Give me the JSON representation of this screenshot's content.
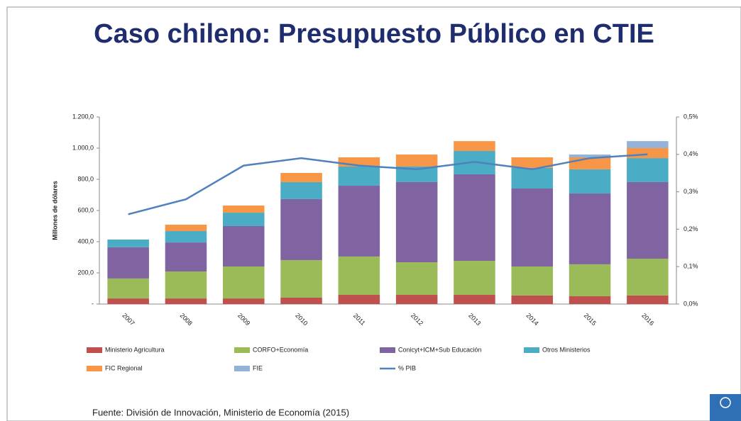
{
  "chart_data": {
    "type": "bar",
    "stacked": true,
    "title": "Caso chileno: Presupuesto Público en CTIE",
    "ylabel": "Millones de dólares",
    "source": "Fuente: División de Innovación, Ministerio de Economía (2015)",
    "categories": [
      "2007",
      "2008",
      "2009",
      "2010",
      "2011",
      "2012",
      "2013",
      "2014",
      "2015",
      "2016"
    ],
    "ylim": [
      0,
      1200
    ],
    "yticks": [
      {
        "value": 0,
        "label": "-"
      },
      {
        "value": 200,
        "label": "200,0"
      },
      {
        "value": 400,
        "label": "400,0"
      },
      {
        "value": 600,
        "label": "600,0"
      },
      {
        "value": 800,
        "label": "800,0"
      },
      {
        "value": 1000,
        "label": "1.000,0"
      },
      {
        "value": 1200,
        "label": "1.200,0"
      }
    ],
    "y2lim": [
      0,
      0.5
    ],
    "y2ticks": [
      {
        "value": 0,
        "label": "0,0%"
      },
      {
        "value": 0.1,
        "label": "0,1%"
      },
      {
        "value": 0.2,
        "label": "0,2%"
      },
      {
        "value": 0.3,
        "label": "0,3%"
      },
      {
        "value": 0.4,
        "label": "0,4%"
      },
      {
        "value": 0.5,
        "label": "0,5%"
      }
    ],
    "series": [
      {
        "name": "Ministerio Agricultura",
        "color": "#c0504d",
        "values": [
          36,
          36,
          36,
          41,
          59,
          59,
          59,
          55,
          50,
          55
        ]
      },
      {
        "name": "CORFO+Economía",
        "color": "#9bbb59",
        "values": [
          128,
          173,
          205,
          241,
          246,
          209,
          218,
          186,
          205,
          236
        ]
      },
      {
        "name": "Conicyt+ICM+Sub Educación",
        "color": "#8064a2",
        "values": [
          200,
          186,
          259,
          391,
          454,
          514,
          555,
          500,
          454,
          491
        ]
      },
      {
        "name": "Otros Ministerios",
        "color": "#4bacc6",
        "values": [
          50,
          73,
          86,
          109,
          123,
          100,
          150,
          132,
          155,
          154
        ]
      },
      {
        "name": "FIC Regional",
        "color": "#f79646",
        "values": [
          0,
          41,
          46,
          59,
          59,
          77,
          63,
          68,
          77,
          64
        ]
      },
      {
        "name": "FIE",
        "color": "#95b3d7",
        "values": [
          0,
          0,
          0,
          0,
          0,
          0,
          0,
          0,
          18,
          45
        ]
      },
      {
        "name": "% PIB",
        "color": "#4f81bd",
        "type": "line",
        "axis": "y2",
        "values": [
          0.24,
          0.28,
          0.37,
          0.39,
          0.37,
          0.36,
          0.38,
          0.36,
          0.39,
          0.4
        ]
      }
    ]
  }
}
